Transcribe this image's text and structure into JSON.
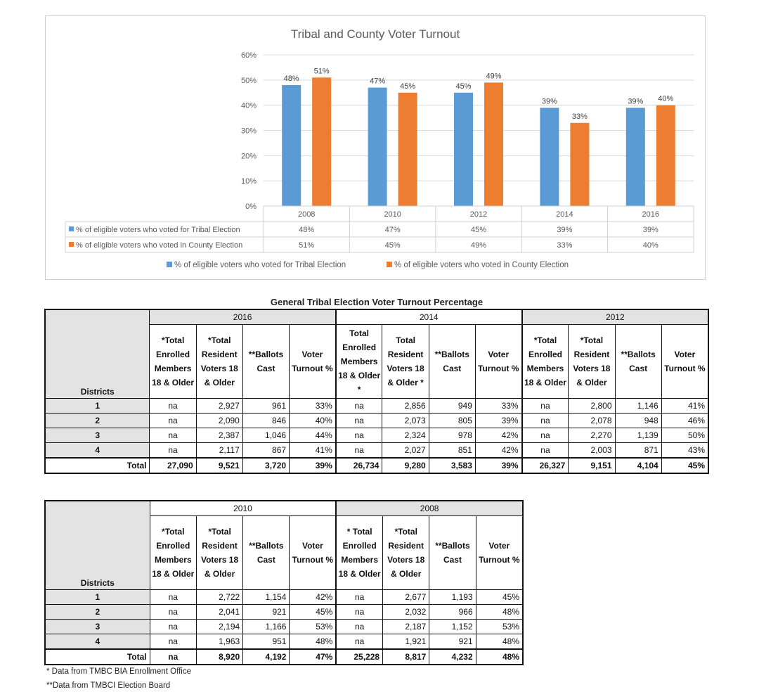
{
  "chart_data": {
    "type": "bar",
    "title": "Tribal and County Voter Turnout",
    "categories": [
      "2008",
      "2010",
      "2012",
      "2014",
      "2016"
    ],
    "series": [
      {
        "name": "% of eligible voters who voted for Tribal Election",
        "values": [
          48,
          47,
          45,
          39,
          39
        ],
        "labels": [
          "48%",
          "47%",
          "45%",
          "39%",
          "39%"
        ],
        "color": "#5B9BD5"
      },
      {
        "name": "% of eligible voters who voted in County Election",
        "values": [
          51,
          45,
          49,
          33,
          40
        ],
        "labels": [
          "51%",
          "45%",
          "49%",
          "33%",
          "40%"
        ],
        "color": "#ED7D31"
      }
    ],
    "ylim": [
      0,
      60
    ],
    "yticks": [
      "0%",
      "10%",
      "20%",
      "30%",
      "40%",
      "50%",
      "60%"
    ],
    "grid": true,
    "legend": "bottom",
    "data_table": true
  },
  "table_title": "General Tribal Election Voter Turnout Percentage",
  "table1": {
    "districts_label": "Districts",
    "years": [
      "2016",
      "2014",
      "2012"
    ],
    "headers": [
      [
        "*Total Enrolled Members 18 & Older",
        "*Total Resident Voters 18 & Older",
        "**Ballots Cast",
        "Voter Turnout %"
      ],
      [
        "Total Enrolled Members 18 & Older *",
        "Total Resident Voters 18 & Older *",
        "**Ballots Cast",
        "Voter Turnout %"
      ],
      [
        "*Total Enrolled Members 18 & Older",
        "*Total Resident Voters 18 & Older",
        "**Ballots Cast",
        "Voter Turnout %"
      ]
    ],
    "rows": [
      {
        "district": "1",
        "cells": [
          "na",
          "2,927",
          "961",
          "33%",
          "na",
          "2,856",
          "949",
          "33%",
          "na",
          "2,800",
          "1,146",
          "41%"
        ]
      },
      {
        "district": "2",
        "cells": [
          "na",
          "2,090",
          "846",
          "40%",
          "na",
          "2,073",
          "805",
          "39%",
          "na",
          "2,078",
          "948",
          "46%"
        ]
      },
      {
        "district": "3",
        "cells": [
          "na",
          "2,387",
          "1,046",
          "44%",
          "na",
          "2,324",
          "978",
          "42%",
          "na",
          "2,270",
          "1,139",
          "50%"
        ]
      },
      {
        "district": "4",
        "cells": [
          "na",
          "2,117",
          "867",
          "41%",
          "na",
          "2,027",
          "851",
          "42%",
          "na",
          "2,003",
          "871",
          "43%"
        ]
      }
    ],
    "total": {
      "label": "Total",
      "cells": [
        "27,090",
        "9,521",
        "3,720",
        "39%",
        "26,734",
        "9,280",
        "3,583",
        "39%",
        "26,327",
        "9,151",
        "4,104",
        "45%"
      ]
    }
  },
  "table2": {
    "districts_label": "Districts",
    "years": [
      "2010",
      "2008"
    ],
    "headers": [
      [
        "*Total Enrolled Members 18 & Older",
        "*Total Resident Voters 18 & Older",
        "**Ballots Cast",
        "Voter Turnout %"
      ],
      [
        "* Total Enrolled Members 18 & Older",
        "*Total Resident Voters 18 & Older",
        "**Ballots Cast",
        "Voter Turnout %"
      ]
    ],
    "rows": [
      {
        "district": "1",
        "cells": [
          "na",
          "2,722",
          "1,154",
          "42%",
          "na",
          "2,677",
          "1,193",
          "45%"
        ]
      },
      {
        "district": "2",
        "cells": [
          "na",
          "2,041",
          "921",
          "45%",
          "na",
          "2,032",
          "966",
          "48%"
        ]
      },
      {
        "district": "3",
        "cells": [
          "na",
          "2,194",
          "1,166",
          "53%",
          "na",
          "2,187",
          "1,152",
          "53%"
        ]
      },
      {
        "district": "4",
        "cells": [
          "na",
          "1,963",
          "951",
          "48%",
          "na",
          "1,921",
          "921",
          "48%"
        ]
      }
    ],
    "total": {
      "label": "Total",
      "cells": [
        "na",
        "8,920",
        "4,192",
        "47%",
        "25,228",
        "8,817",
        "4,232",
        "48%"
      ]
    }
  },
  "footnotes": [
    "* Data from TMBC BIA Enrollment Office",
    "**Data from TMBCI Election Board"
  ]
}
